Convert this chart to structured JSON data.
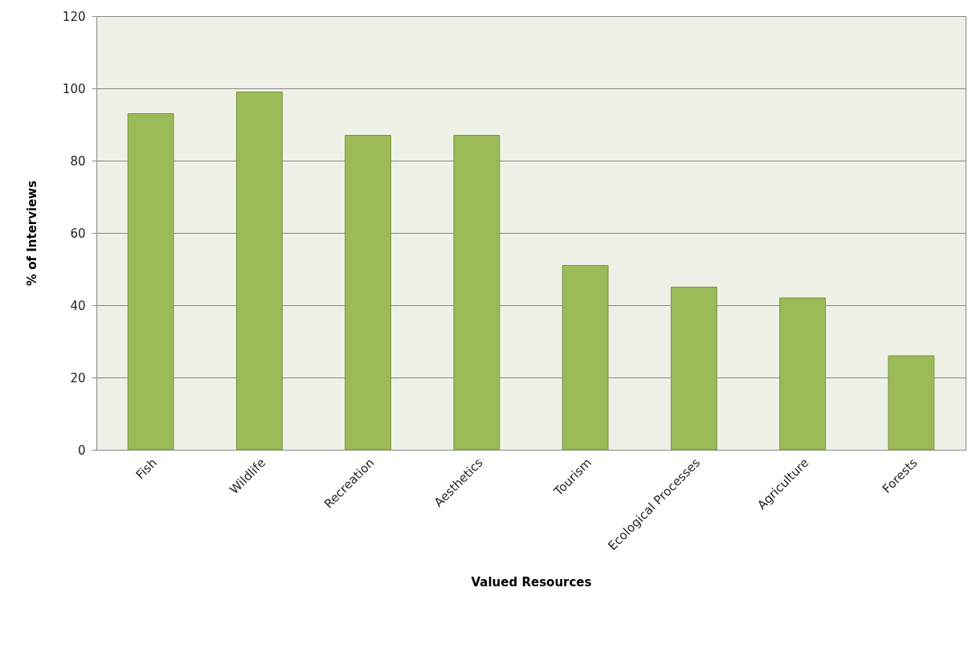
{
  "chart_data": {
    "type": "bar",
    "xlabel": "Valued Resources",
    "ylabel": "% of Interviews",
    "categories": [
      "Fish",
      "Wildlife",
      "Recreation",
      "Aesthetics",
      "Tourism",
      "Ecological Processes",
      "Agriculture",
      "Forests"
    ],
    "values": [
      93,
      99,
      87,
      87,
      51,
      45,
      42,
      26
    ],
    "color": "#9bbb59",
    "ylim": [
      0,
      120
    ],
    "yticks": [
      0,
      20,
      40,
      60,
      80,
      100,
      120
    ],
    "grid": "y",
    "legend": false
  }
}
